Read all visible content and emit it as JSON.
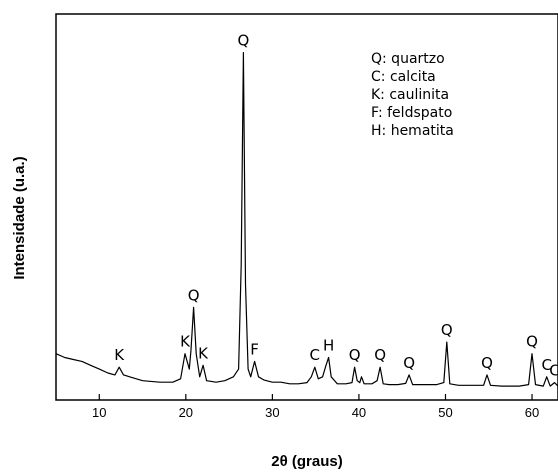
{
  "chart_data": {
    "type": "line",
    "xlabel": "2θ (graus)",
    "ylabel": "Intensidade (u.a.)",
    "xlim": [
      5,
      63
    ],
    "ylim": [
      0,
      100
    ],
    "xticks": [
      10,
      20,
      30,
      40,
      50,
      60
    ],
    "xtick_labels": [
      "10",
      "20",
      "30",
      "40",
      "50",
      "60"
    ],
    "legend": [
      "Q: quartzo",
      "C: calcita",
      "K: caulinita",
      "F: feldspato",
      "H: hematita"
    ],
    "legend_position": "top-right",
    "grid": false,
    "series": [
      {
        "x": [
          5,
          6,
          7,
          8,
          9,
          10,
          11,
          11.8,
          12.3,
          12.8,
          13.5,
          15,
          17,
          18.5,
          19.4,
          19.9,
          20.4,
          20.6,
          20.9,
          21.2,
          21.6,
          22.0,
          22.4,
          23.5,
          24.5,
          25.5,
          26.1,
          26.4,
          26.65,
          26.9,
          27.2,
          27.5,
          27.95,
          28.4,
          29,
          30,
          31,
          32,
          33,
          34,
          34.5,
          34.9,
          35.3,
          35.8,
          36.2,
          36.5,
          36.8,
          37.5,
          38.5,
          39.2,
          39.5,
          39.8,
          40.1,
          40.3,
          40.6,
          41.5,
          42.1,
          42.45,
          42.8,
          43.5,
          44.5,
          45.4,
          45.8,
          46.2,
          47.5,
          49,
          49.8,
          50.15,
          50.5,
          51.5,
          53,
          54.4,
          54.8,
          55.2,
          56.5,
          58.5,
          59.6,
          60.0,
          60.4,
          61.3,
          61.7,
          62.1,
          62.6,
          63
        ],
        "y": [
          12,
          11,
          10.5,
          10,
          9,
          8,
          7,
          6.5,
          8.5,
          6.5,
          6,
          5,
          4.6,
          4.6,
          5.5,
          12,
          8,
          13,
          24,
          12,
          6,
          9,
          5,
          4.6,
          5,
          6,
          8,
          35,
          90,
          30,
          8,
          6,
          10,
          6,
          5.2,
          4.6,
          4.6,
          4.2,
          4.2,
          4.5,
          6,
          8.5,
          5.5,
          6,
          9,
          11,
          6,
          4.2,
          4.2,
          4.5,
          8.5,
          5,
          4.5,
          6,
          4.2,
          4.2,
          5,
          8.5,
          4.2,
          4,
          4,
          4.3,
          6.5,
          4,
          4,
          4,
          4.5,
          15,
          4.2,
          3.8,
          3.8,
          3.8,
          6.5,
          3.8,
          3.6,
          3.6,
          4,
          12,
          4,
          3.6,
          6,
          3.6,
          4.5,
          3.6
        ]
      }
    ],
    "annotations": [
      {
        "text": "K",
        "x": 12.3,
        "y": 8.5
      },
      {
        "text": "K",
        "x": 19.9,
        "y": 12
      },
      {
        "text": "Q",
        "x": 20.9,
        "y": 24
      },
      {
        "text": "K",
        "x": 22.0,
        "y": 9
      },
      {
        "text": "Q",
        "x": 26.65,
        "y": 90
      },
      {
        "text": "F",
        "x": 27.95,
        "y": 10
      },
      {
        "text": "C",
        "x": 34.9,
        "y": 8.5
      },
      {
        "text": "H",
        "x": 36.5,
        "y": 11
      },
      {
        "text": "Q",
        "x": 39.5,
        "y": 8.5
      },
      {
        "text": "Q",
        "x": 42.45,
        "y": 8.5
      },
      {
        "text": "Q",
        "x": 45.8,
        "y": 6.5
      },
      {
        "text": "Q",
        "x": 50.15,
        "y": 15
      },
      {
        "text": "Q",
        "x": 54.8,
        "y": 6.5
      },
      {
        "text": "Q",
        "x": 60.0,
        "y": 12
      },
      {
        "text": "C",
        "x": 61.7,
        "y": 6
      },
      {
        "text": "C",
        "x": 62.6,
        "y": 4.5
      }
    ]
  }
}
